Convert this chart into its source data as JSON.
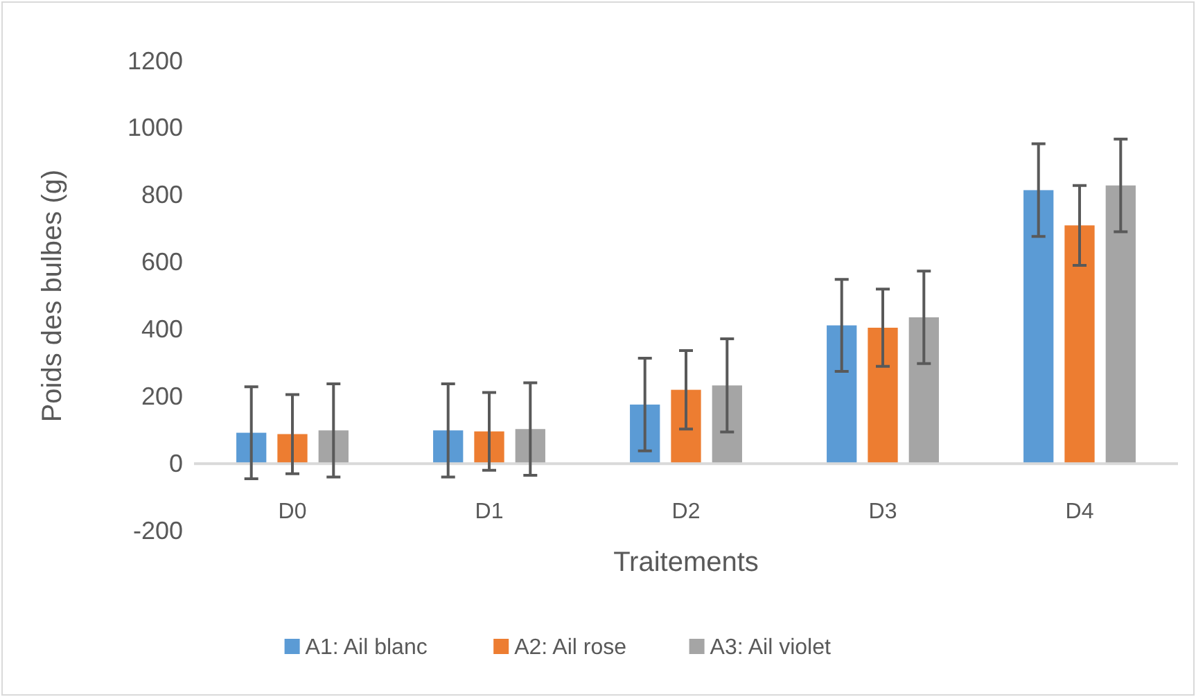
{
  "chart_data": {
    "type": "bar",
    "xlabel": "Traitements",
    "ylabel": "Poids des bulbes (g)",
    "categories": [
      "D0",
      "D1",
      "D2",
      "D3",
      "D4"
    ],
    "series": [
      {
        "name": "A1: Ail blanc",
        "color": "#5b9bd5",
        "values": [
          92,
          99,
          176,
          412,
          815
        ],
        "errors": [
          137,
          139,
          138,
          137,
          138
        ]
      },
      {
        "name": "A2: Ail rose",
        "color": "#ed7d31",
        "values": [
          88,
          96,
          220,
          405,
          710
        ],
        "errors": [
          118,
          116,
          117,
          115,
          119
        ]
      },
      {
        "name": "A3: Ail violet",
        "color": "#a5a5a5",
        "values": [
          99,
          103,
          233,
          436,
          829
        ],
        "errors": [
          139,
          138,
          139,
          138,
          138
        ]
      }
    ],
    "ylim": [
      -200,
      1200
    ],
    "yticks": [
      -200,
      0,
      200,
      400,
      600,
      800,
      1000,
      1200
    ],
    "grid": false,
    "legend": "bottom"
  }
}
